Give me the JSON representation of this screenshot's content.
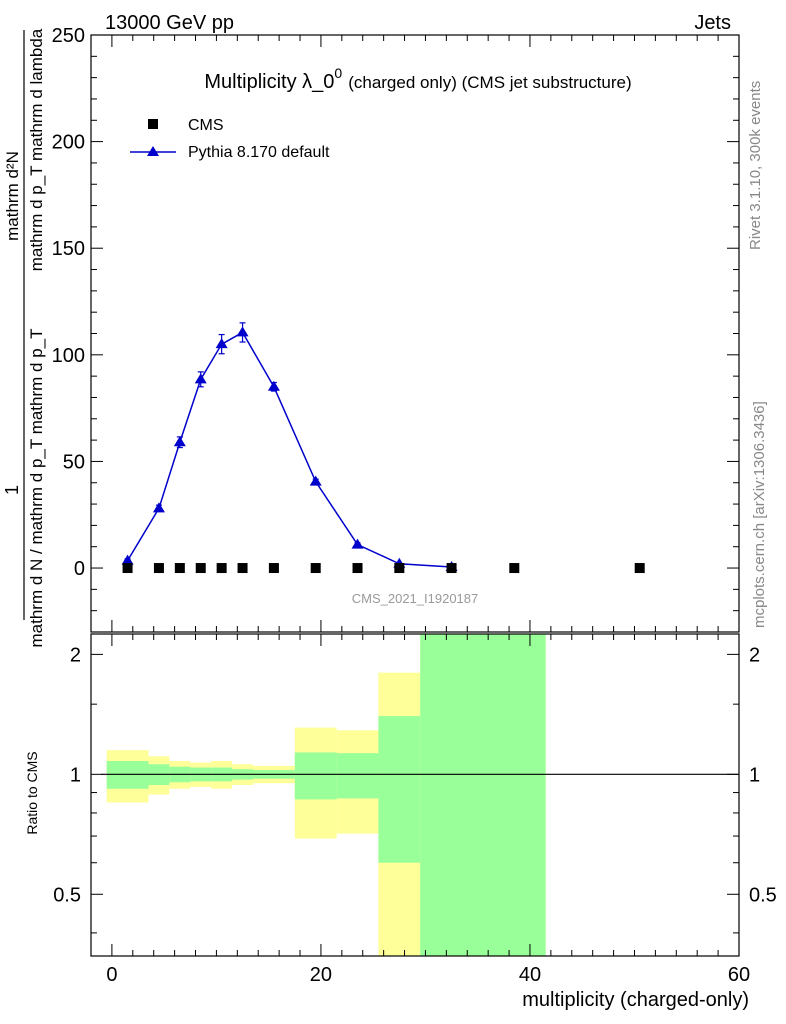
{
  "header": {
    "energy_label": "13000 GeV pp",
    "process_label": "Jets"
  },
  "side": {
    "rivet_label": "Rivet 3.1.10,  300k events",
    "site_label": "mcplots.cern.ch [arXiv:1306.3436]"
  },
  "chart_data": [
    {
      "type": "scatter",
      "title_main": "Multiplicity λ_0",
      "title_sup": "0",
      "title_rest": "(charged only) (CMS jet substructure)",
      "watermark": "CMS_2021_I1920187",
      "ylabel_top": "1",
      "ylabel_bottom": "mathrm d N / mathrm d p_T mathrm d p_T",
      "ylabel2_top": "mathrm d²N",
      "ylabel2_bottom": "mathrm d p_T mathrm d lambda",
      "xlim": [
        -2,
        60
      ],
      "ylim": [
        -30,
        250
      ],
      "yticks": [
        0,
        50,
        100,
        150,
        200,
        250
      ],
      "legend": [
        {
          "name": "CMS",
          "marker": "square",
          "color": "#000000"
        },
        {
          "name": "Pythia 8.170 default",
          "marker": "triangle",
          "color": "#0000cc"
        }
      ],
      "series": [
        {
          "name": "CMS",
          "x": [
            1.5,
            4.5,
            6.5,
            8.5,
            10.5,
            12.5,
            15.5,
            19.5,
            23.5,
            27.5,
            32.5,
            38.5,
            50.5
          ],
          "y": [
            0,
            0,
            0,
            0,
            0,
            0,
            0,
            0,
            0,
            0,
            0,
            0,
            0
          ]
        },
        {
          "name": "Pythia 8.170 default",
          "x": [
            1.5,
            4.5,
            6.5,
            8.5,
            10.5,
            12.5,
            15.5,
            19.5,
            23.5,
            27.5,
            32.5
          ],
          "y": [
            3.5,
            28,
            59,
            88.5,
            105,
            110.5,
            85,
            40.5,
            11,
            2,
            0.5
          ],
          "err": [
            0.8,
            1.5,
            2.5,
            3.5,
            4.5,
            4.5,
            2,
            1.2,
            0.8,
            0.3,
            0.2
          ]
        }
      ]
    },
    {
      "type": "area",
      "ylabel": "Ratio to CMS",
      "xlabel": "multiplicity (charged-only)",
      "xlim": [
        -2,
        60
      ],
      "ylim": [
        0.35,
        2.25
      ],
      "yticks": [
        0.5,
        1,
        2
      ],
      "xticks": [
        0,
        20,
        40,
        60
      ],
      "reference": 1,
      "bands": [
        {
          "x0": -0.5,
          "x1": 3.5,
          "inner": [
            0.92,
            1.08
          ],
          "outer": [
            0.85,
            1.15
          ]
        },
        {
          "x0": 3.5,
          "x1": 5.5,
          "inner": [
            0.94,
            1.06
          ],
          "outer": [
            0.89,
            1.11
          ]
        },
        {
          "x0": 5.5,
          "x1": 7.5,
          "inner": [
            0.955,
            1.045
          ],
          "outer": [
            0.92,
            1.08
          ]
        },
        {
          "x0": 7.5,
          "x1": 9.5,
          "inner": [
            0.96,
            1.04
          ],
          "outer": [
            0.93,
            1.07
          ]
        },
        {
          "x0": 9.5,
          "x1": 11.5,
          "inner": [
            0.96,
            1.04
          ],
          "outer": [
            0.92,
            1.08
          ]
        },
        {
          "x0": 11.5,
          "x1": 13.5,
          "inner": [
            0.97,
            1.03
          ],
          "outer": [
            0.94,
            1.06
          ]
        },
        {
          "x0": 13.5,
          "x1": 17.5,
          "inner": [
            0.975,
            1.025
          ],
          "outer": [
            0.95,
            1.05
          ]
        },
        {
          "x0": 17.5,
          "x1": 21.5,
          "inner": [
            0.865,
            1.135
          ],
          "outer": [
            0.69,
            1.31
          ]
        },
        {
          "x0": 21.5,
          "x1": 25.5,
          "inner": [
            0.87,
            1.13
          ],
          "outer": [
            0.71,
            1.29
          ]
        },
        {
          "x0": 25.5,
          "x1": 29.5,
          "inner": [
            0.6,
            1.4
          ],
          "outer": [
            0.35,
            1.8
          ]
        },
        {
          "x0": 29.5,
          "x1": 41.5,
          "inner": [
            0.35,
            2.25
          ],
          "outer": [
            0.35,
            2.25
          ]
        }
      ],
      "colors": {
        "inner": "#99ff99",
        "outer": "#ffff99"
      }
    }
  ]
}
